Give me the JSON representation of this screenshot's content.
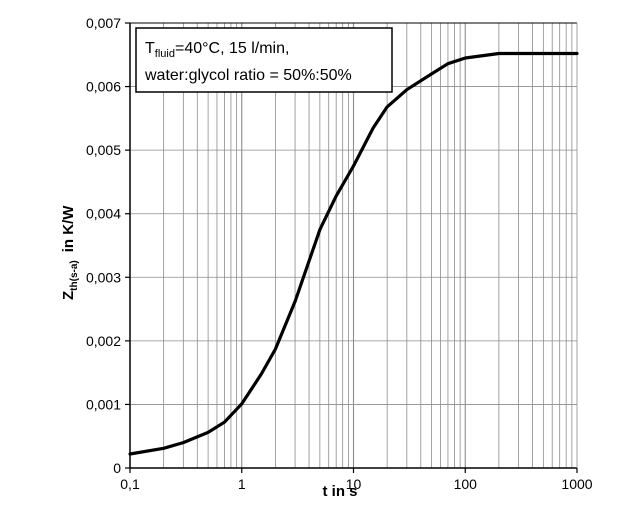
{
  "chart_data": {
    "type": "line",
    "xscale": "log",
    "xlim": [
      0.1,
      1000
    ],
    "ylim": [
      0,
      0.007
    ],
    "grid": true,
    "xlabel": "t  in s",
    "ylabel_main": "Z",
    "ylabel_sub": "th(s-a)",
    "ylabel_unit": "in K/W",
    "xticks": [
      {
        "value": 0.1,
        "label": "0,1"
      },
      {
        "value": 1,
        "label": "1"
      },
      {
        "value": 10,
        "label": "10"
      },
      {
        "value": 100,
        "label": "100"
      },
      {
        "value": 1000,
        "label": "1000"
      }
    ],
    "yticks": [
      {
        "value": 0,
        "label": "0"
      },
      {
        "value": 0.001,
        "label": "0,001"
      },
      {
        "value": 0.002,
        "label": "0,002"
      },
      {
        "value": 0.003,
        "label": "0,003"
      },
      {
        "value": 0.004,
        "label": "0,004"
      },
      {
        "value": 0.005,
        "label": "0,005"
      },
      {
        "value": 0.006,
        "label": "0,006"
      },
      {
        "value": 0.007,
        "label": "0,007"
      }
    ],
    "annotation": {
      "line1_prefix": "T",
      "line1_sub": "fluid",
      "line1_suffix": "=40°C, 15 l/min,",
      "line2": "water:glycol ratio = 50%:50%"
    },
    "series": [
      {
        "x": [
          0.1,
          0.2,
          0.3,
          0.5,
          0.7,
          1,
          1.5,
          2,
          3,
          5,
          7,
          10,
          15,
          20,
          30,
          50,
          70,
          100,
          200,
          500,
          1000
        ],
        "y": [
          0.00022,
          0.00031,
          0.0004,
          0.00056,
          0.00072,
          0.00101,
          0.00148,
          0.00187,
          0.00262,
          0.00375,
          0.00428,
          0.00475,
          0.00535,
          0.00568,
          0.00595,
          0.0062,
          0.00636,
          0.00645,
          0.00652,
          0.00652,
          0.00652
        ]
      }
    ]
  }
}
